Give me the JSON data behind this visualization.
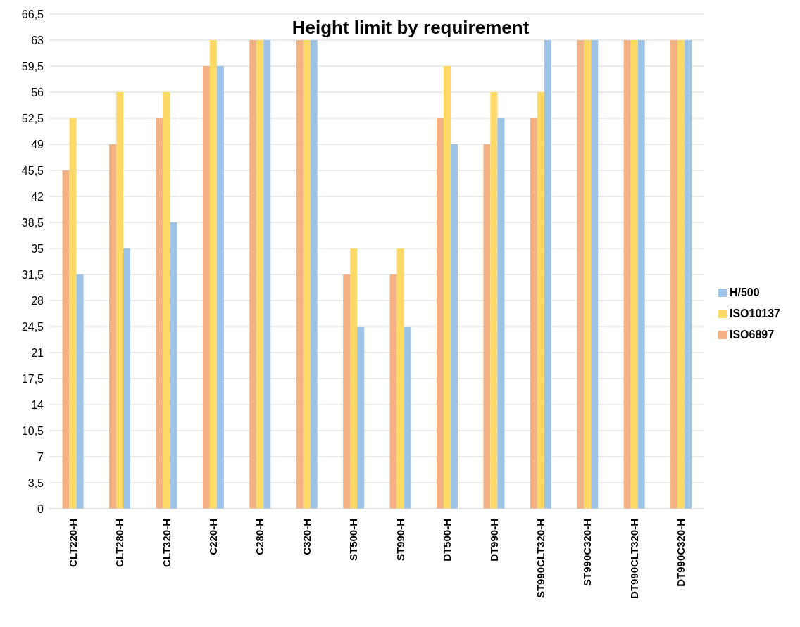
{
  "chart_data": {
    "type": "bar",
    "title": "Height limit by requirement",
    "categories": [
      "CLT220-H",
      "CLT280-H",
      "CLT320-H",
      "C220-H",
      "C280-H",
      "C320-H",
      "ST500-H",
      "ST990-H",
      "DT500-H",
      "DT990-H",
      "ST990CLT320-H",
      "ST990C320-H",
      "DT990CLT320-H",
      "DT990C320-H"
    ],
    "series": [
      {
        "name": "ISO6897",
        "color": "#f4b183",
        "values": [
          45.5,
          49,
          52.5,
          59.5,
          63,
          63,
          31.5,
          31.5,
          52.5,
          49,
          52.5,
          63,
          63,
          63
        ]
      },
      {
        "name": "ISO10137",
        "color": "#ffd966",
        "values": [
          52.5,
          56,
          56,
          63,
          63,
          63,
          35,
          35,
          59.5,
          56,
          56,
          63,
          63,
          63
        ]
      },
      {
        "name": "H/500",
        "color": "#9dc3e6",
        "values": [
          31.5,
          35,
          38.5,
          59.5,
          63,
          63,
          24.5,
          24.5,
          49,
          52.5,
          63,
          63,
          63,
          63
        ]
      }
    ],
    "ylim": [
      0,
      66.5
    ],
    "yticks": [
      0,
      {
        "value": 3.5,
        "label": "3,5"
      },
      7,
      {
        "value": 10.5,
        "label": "10,5"
      },
      14,
      {
        "value": 17.5,
        "label": "17,5"
      },
      21,
      {
        "value": 24.5,
        "label": "24,5"
      },
      28,
      {
        "value": 31.5,
        "label": "31,5"
      },
      35,
      {
        "value": 38.5,
        "label": "38,5"
      },
      42,
      {
        "value": 45.5,
        "label": "45,5"
      },
      49,
      {
        "value": 52.5,
        "label": "52,5"
      },
      56,
      {
        "value": 59.5,
        "label": "59,5"
      },
      63,
      {
        "value": 66.5,
        "label": "66,5"
      }
    ],
    "grid": "y",
    "legend": "right"
  }
}
